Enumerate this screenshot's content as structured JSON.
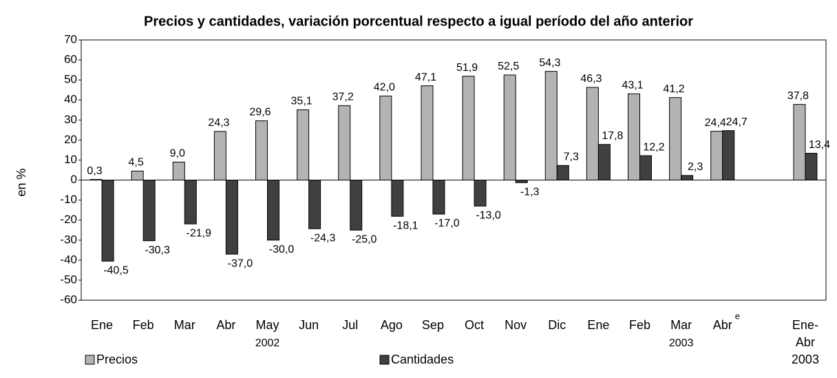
{
  "chart_data": {
    "type": "bar",
    "title": "Precios y cantidades, variación porcentual respecto a igual período del año anterior",
    "y_label": "en %",
    "categories": [
      "Ene",
      "Feb",
      "Mar",
      "Abr",
      "May",
      "Jun",
      "Jul",
      "Ago",
      "Sep",
      "Oct",
      "Nov",
      "Dic",
      "Ene",
      "Feb",
      "Mar",
      "Abr",
      null,
      "Ene-Abr 2003"
    ],
    "category_superscripts": [
      null,
      null,
      null,
      null,
      null,
      null,
      null,
      null,
      null,
      null,
      null,
      null,
      null,
      null,
      null,
      "e",
      null,
      null
    ],
    "group_labels": [
      null,
      null,
      null,
      null,
      "2002",
      null,
      null,
      null,
      null,
      null,
      null,
      null,
      null,
      null,
      "2003",
      null,
      null,
      null
    ],
    "series": [
      {
        "name": "Precios",
        "color": "#b3b3b3",
        "values": [
          0.3,
          4.5,
          9.0,
          24.3,
          29.6,
          35.1,
          37.2,
          42.0,
          47.1,
          51.9,
          52.5,
          54.3,
          46.3,
          43.1,
          41.2,
          24.4,
          null,
          37.8
        ],
        "value_labels": [
          "0,3",
          "4,5",
          "9,0",
          "24,3",
          "29,6",
          "35,1",
          "37,2",
          "42,0",
          "47,1",
          "51,9",
          "52,5",
          "54,3",
          "46,3",
          "43,1",
          "41,2",
          "24,4",
          null,
          "37,8"
        ]
      },
      {
        "name": "Cantidades",
        "color": "#404040",
        "values": [
          -40.5,
          -30.3,
          -21.9,
          -37.0,
          -30.0,
          -24.3,
          -25.0,
          -18.1,
          -17.0,
          -13.0,
          -1.3,
          7.3,
          17.8,
          12.2,
          2.3,
          24.7,
          null,
          13.4
        ],
        "value_labels": [
          "-40,5",
          "-30,3",
          "-21,9",
          "-37,0",
          "-30,0",
          "-24,3",
          "-25,0",
          "-18,1",
          "-17,0",
          "-13,0",
          "-1,3",
          "7,3",
          "17,8",
          "12,2",
          "2,3",
          "24,7",
          null,
          "13,4"
        ]
      }
    ],
    "ylim": [
      -60,
      70
    ],
    "yticks": [
      -60,
      -50,
      -40,
      -30,
      -20,
      -10,
      0,
      10,
      20,
      30,
      40,
      50,
      60,
      70
    ],
    "grid": false,
    "legend": "bottom"
  }
}
